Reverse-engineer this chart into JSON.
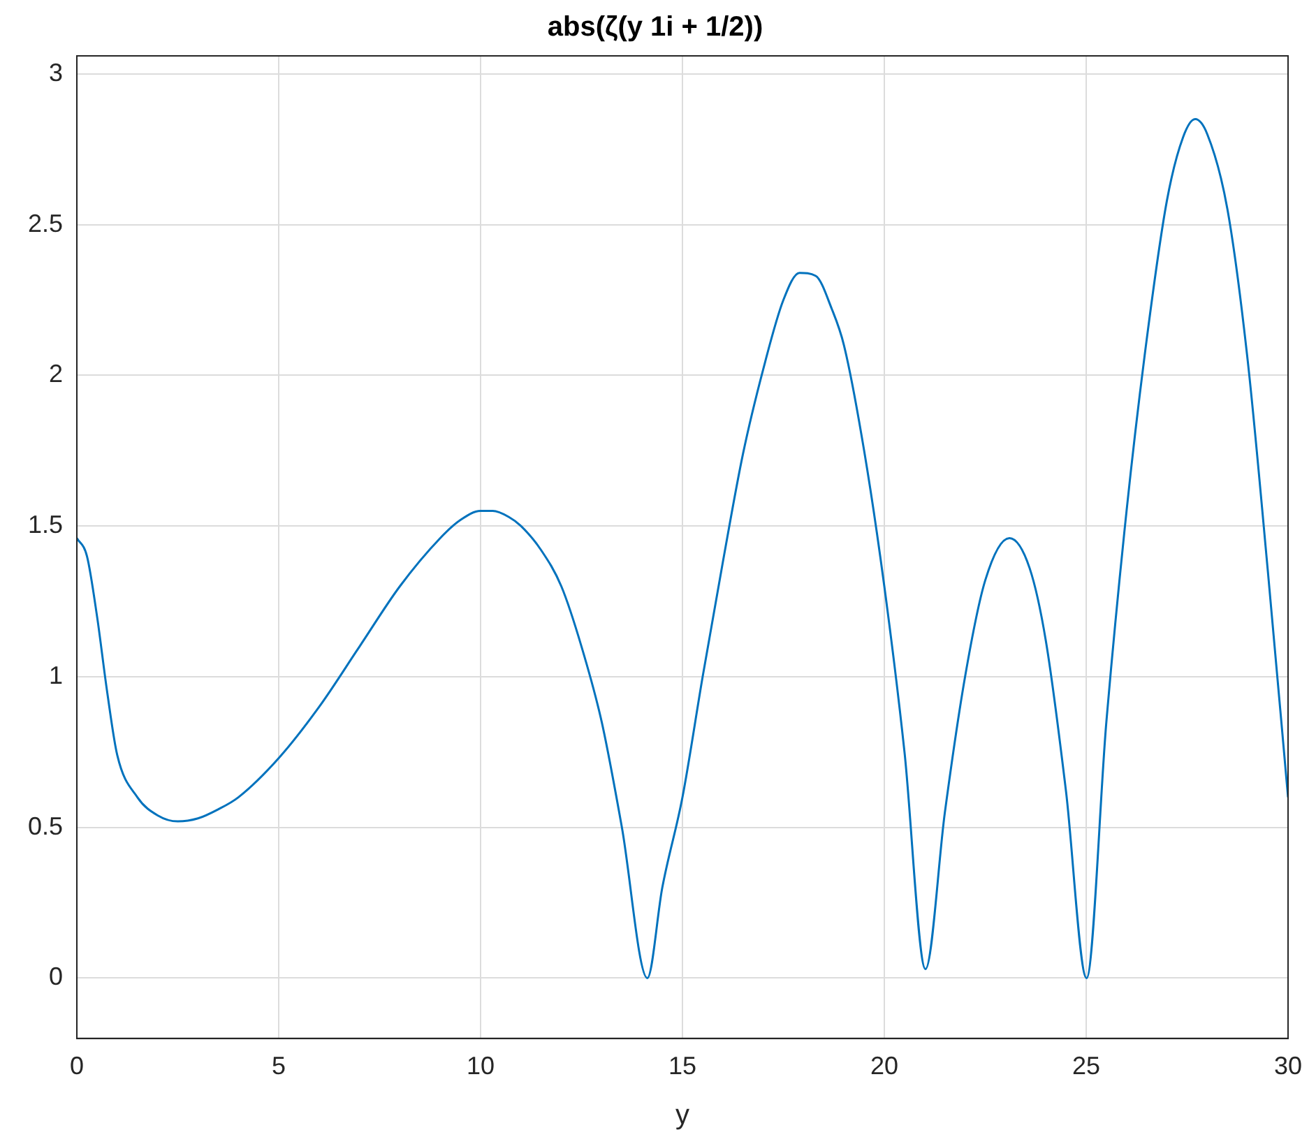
{
  "chart_data": {
    "type": "line",
    "title": "abs(ζ(y 1i + 1/2))",
    "xlabel": "y",
    "x": [
      0,
      0.25,
      0.5,
      0.75,
      1,
      1.5,
      2,
      2.5,
      3,
      3.5,
      4,
      5,
      6,
      7,
      8,
      9,
      9.5,
      10,
      10.3,
      10.7,
      11,
      11.5,
      12,
      12.5,
      13,
      13.5,
      14.13,
      14.5,
      15,
      15.5,
      16,
      16.5,
      17,
      17.5,
      17.9,
      18.3,
      18.7,
      19,
      19.5,
      20,
      20.5,
      21.02,
      21.5,
      22,
      22.5,
      23.1,
      23.6,
      24,
      24.5,
      25.01,
      25.5,
      26,
      26.5,
      27,
      27.4,
      27.7,
      28,
      28.5,
      29,
      29.5,
      30
    ],
    "series": [
      {
        "color": "#0072bd",
        "values": [
          1.46,
          1.4,
          1.2,
          0.95,
          0.74,
          0.6,
          0.54,
          0.52,
          0.53,
          0.56,
          0.6,
          0.73,
          0.9,
          1.1,
          1.3,
          1.46,
          1.52,
          1.55,
          1.55,
          1.53,
          1.5,
          1.42,
          1.3,
          1.1,
          0.85,
          0.5,
          0,
          0.3,
          0.6,
          1.0,
          1.38,
          1.74,
          2.02,
          2.25,
          2.34,
          2.33,
          2.22,
          2.1,
          1.75,
          1.3,
          0.75,
          0.03,
          0.55,
          1.0,
          1.32,
          1.46,
          1.36,
          1.12,
          0.62,
          0,
          0.85,
          1.55,
          2.12,
          2.58,
          2.79,
          2.85,
          2.8,
          2.55,
          2.05,
          1.35,
          0.6
        ]
      }
    ],
    "xlim": [
      0,
      30
    ],
    "xticks": [
      0,
      5,
      10,
      15,
      20,
      25,
      30
    ],
    "ylim": [
      -0.2,
      3.06
    ],
    "yticks": [
      0,
      0.5,
      1,
      1.5,
      2,
      2.5,
      3
    ],
    "grid": true,
    "legend": false,
    "marker": "none",
    "line_style": "solid"
  }
}
